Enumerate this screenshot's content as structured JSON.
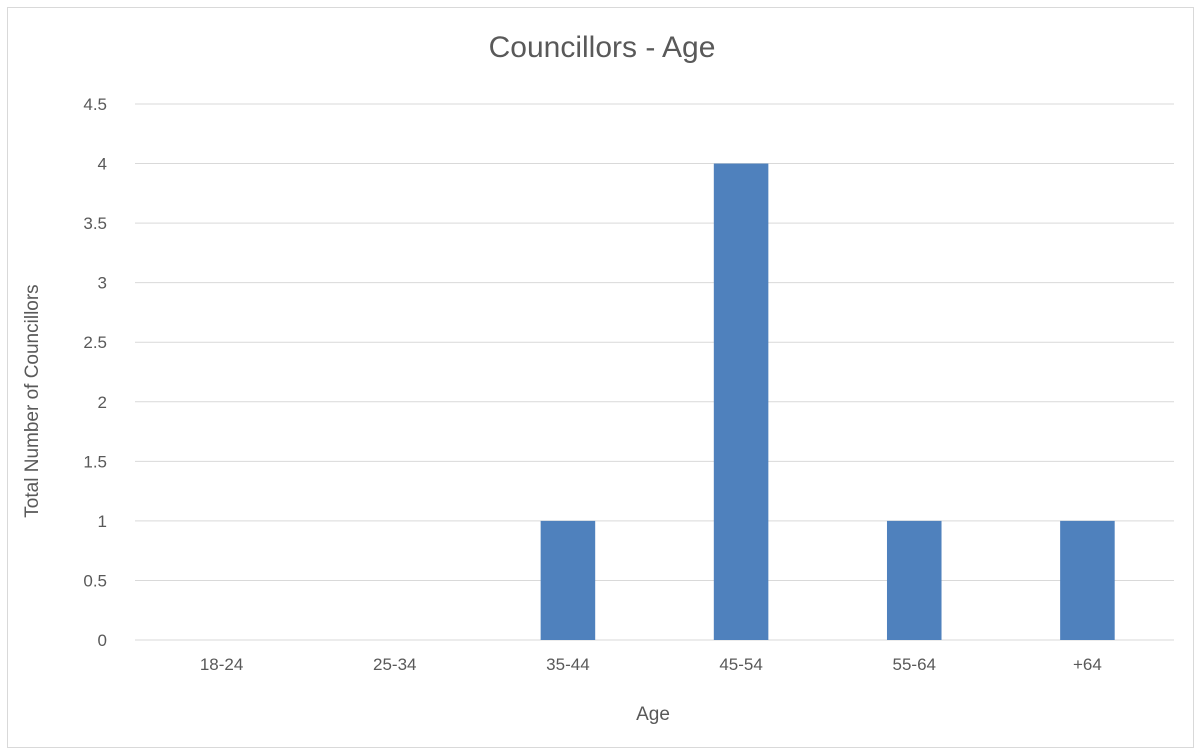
{
  "chart_data": {
    "type": "bar",
    "title": "Councillors - Age",
    "xlabel": "Age",
    "ylabel": "Total Number of Councillors",
    "categories": [
      "18-24",
      "25-34",
      "35-44",
      "45-54",
      "55-64",
      "+64"
    ],
    "values": [
      0,
      0,
      1,
      4,
      1,
      1
    ],
    "ylim": [
      0,
      4.5
    ],
    "yticks": [
      "0",
      "0.5",
      "1",
      "1.5",
      "2",
      "2.5",
      "3",
      "3.5",
      "4",
      "4.5"
    ],
    "grid": true,
    "legend": "none",
    "bar_color": "#4f81bd",
    "grid_color": "#d9d9d9",
    "text_color": "#595959"
  }
}
